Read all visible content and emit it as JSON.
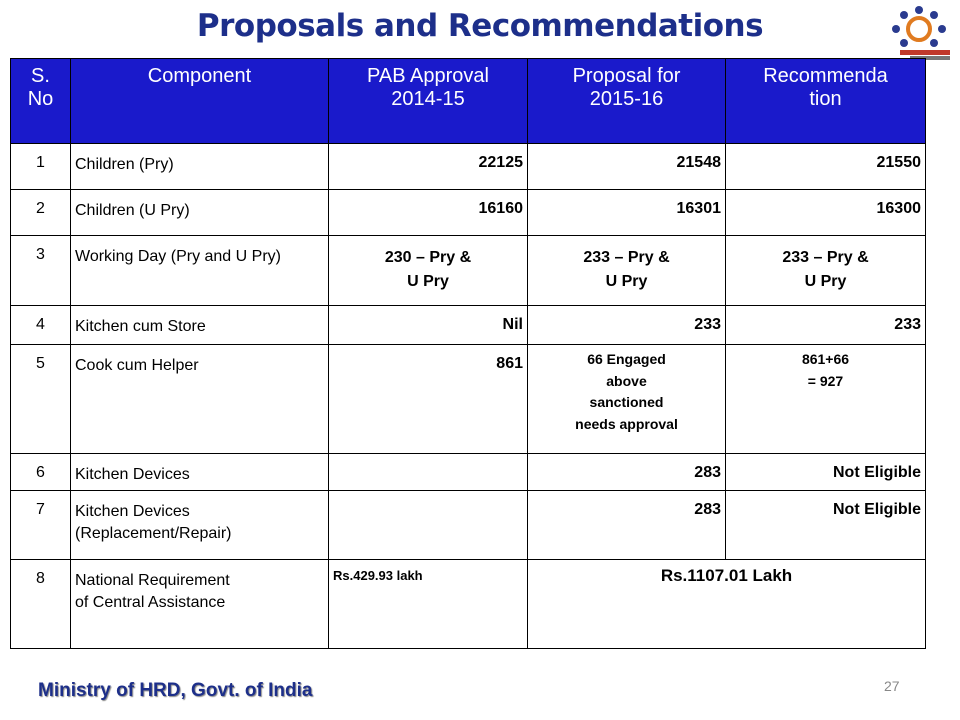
{
  "title": "Proposals and Recommendations",
  "table": {
    "header": [
      "S.\nNo",
      "Component",
      "PAB Approval\n2014-15",
      "Proposal for\n2015-16",
      "Recommendation"
    ],
    "rows": [
      {
        "no": 1,
        "component": "Children (Pry)",
        "pab": 22125,
        "proposal": 21548,
        "recommendation": 21550
      },
      {
        "no": 2,
        "component": "Children (U Pry)",
        "pab": 16160,
        "proposal": 16301,
        "recommendation": 16300
      },
      {
        "no": 3,
        "component": "Working Day (Pry and U Pry)",
        "pab": "230 – Pry &\nU Pry",
        "proposal": "233 – Pry &\nU Pry",
        "recommendation": "233 – Pry &\nU Pry"
      },
      {
        "no": 4,
        "component": "Kitchen cum Store",
        "pab": "Nil",
        "proposal": 233,
        "recommendation": 233
      },
      {
        "no": 5,
        "component": "Cook cum Helper",
        "pab": 861,
        "proposal": "66  Engaged\nabove\nsanctioned\nneeds approval",
        "recommendation": "861+66\n= 927"
      },
      {
        "no": 6,
        "component": "Kitchen Devices",
        "proposal": 283,
        "recommendation": "Not Eligible"
      },
      {
        "no": 7,
        "component": "Kitchen Devices\n(Replacement/Repair)",
        "proposal": 283,
        "recommendation": "Not Eligible"
      },
      {
        "no": 8,
        "component": "National Requirement\nof Central Assistance",
        "pab": "Rs.429.93 lakh",
        "proposal": "Rs.1107.01 Lakh"
      }
    ]
  },
  "footer": "Ministry of HRD, Govt. of India",
  "page_number": 27
}
